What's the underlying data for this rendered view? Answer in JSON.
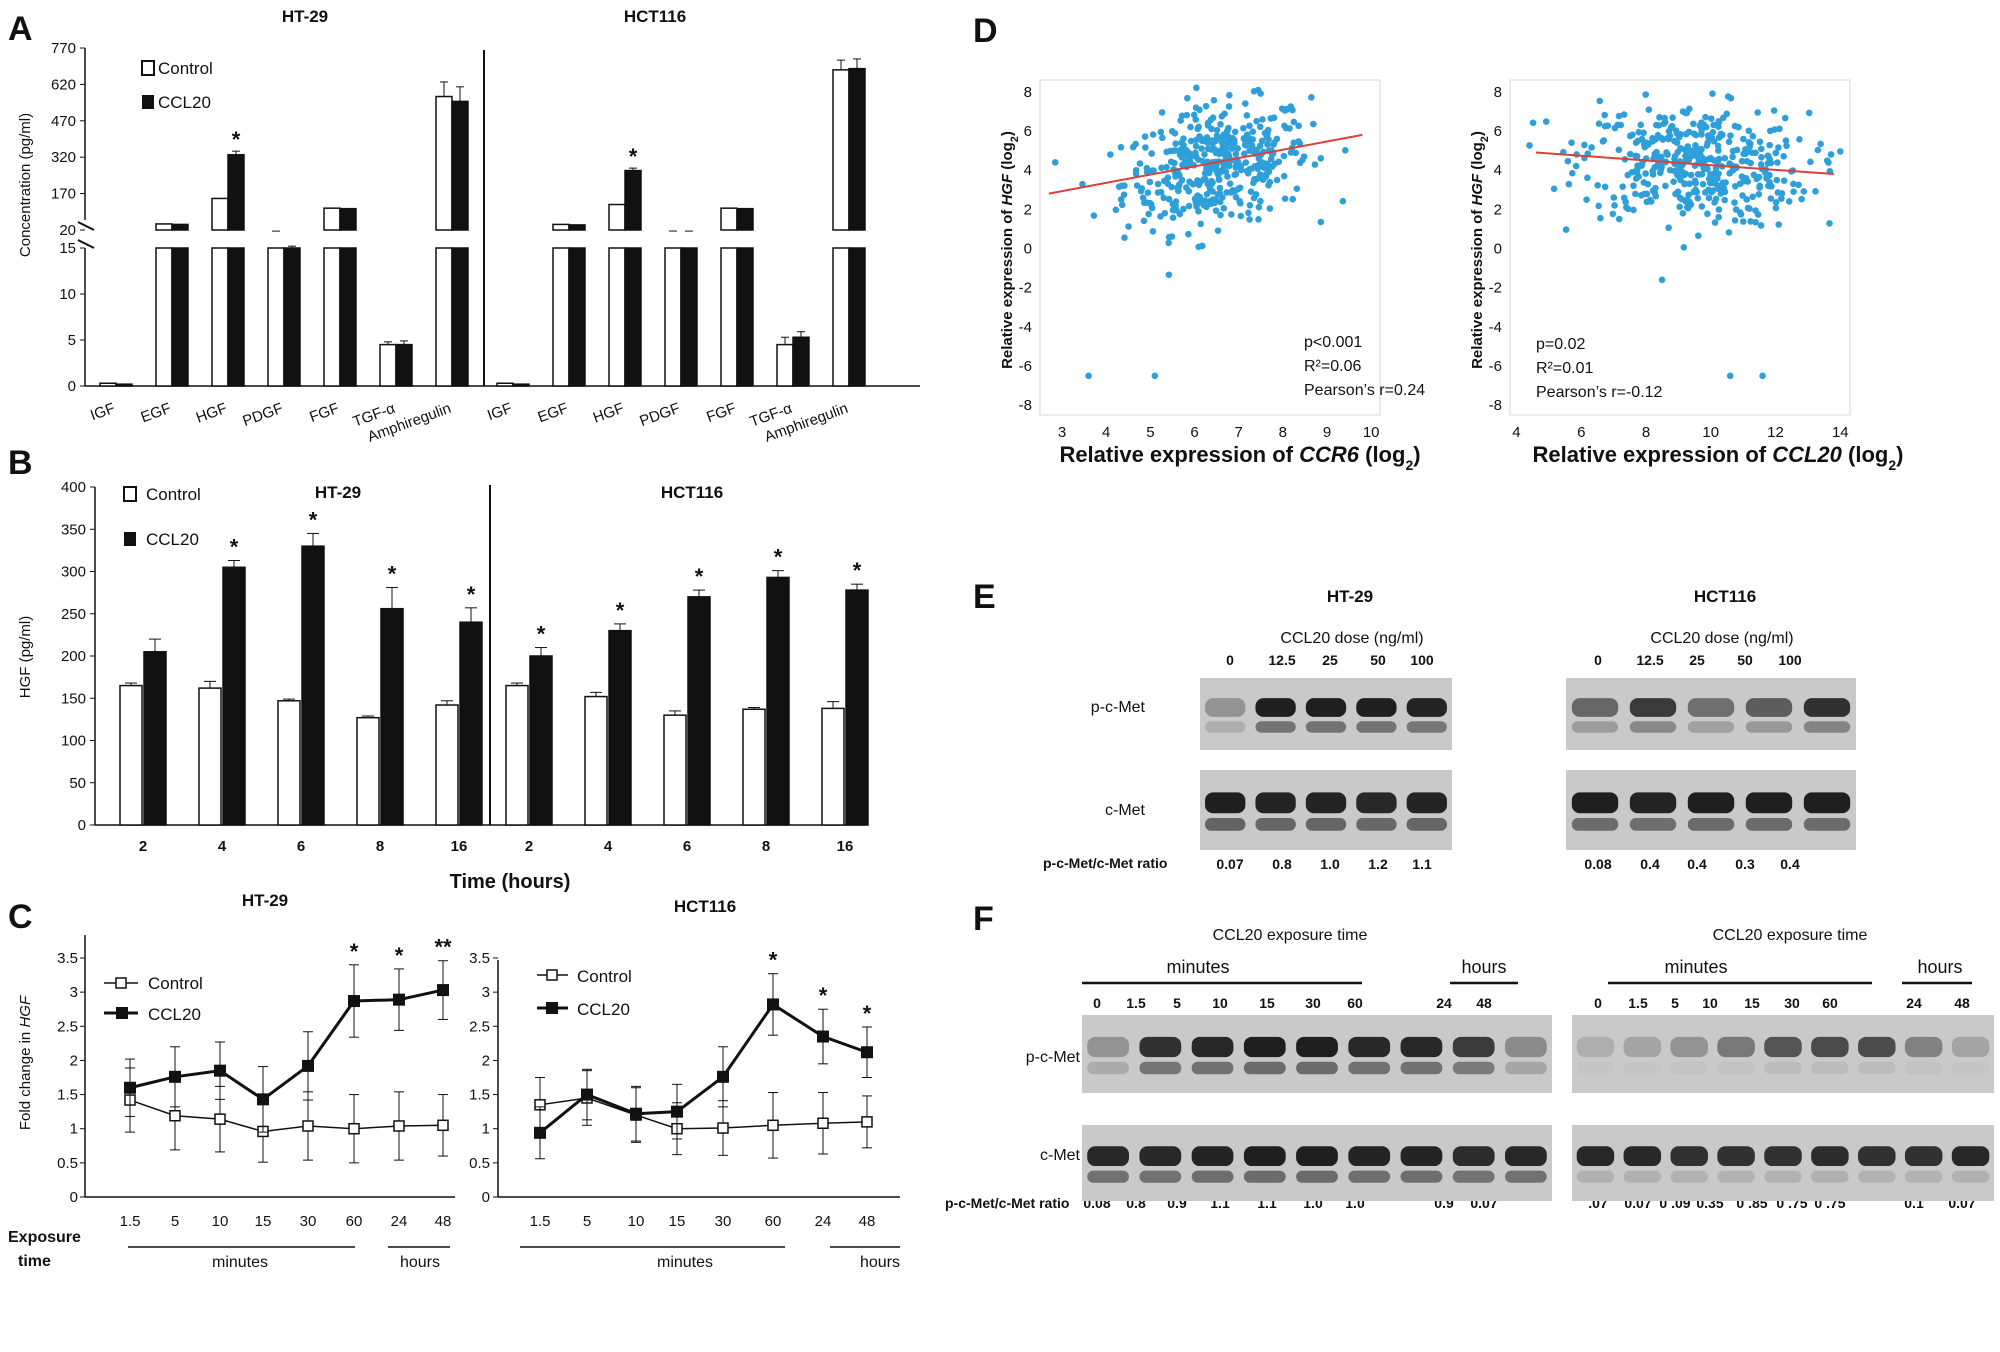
{
  "panels": {
    "A": {
      "label": "A",
      "titles": [
        "HT-29",
        "HCT116"
      ],
      "ylabel": "Concentration (pg/ml)",
      "legend": [
        "Control",
        "CCL20"
      ],
      "yticks_lower": [
        "0",
        "5",
        "10",
        "15"
      ],
      "yticks_upper": [
        "20",
        "170",
        "320",
        "470",
        "620",
        "770"
      ],
      "categories": [
        "IGF",
        "EGF",
        "HGF",
        "PDGF",
        "FGF",
        "TGF-α",
        "Amphiregulin"
      ],
      "star": "*"
    },
    "B": {
      "label": "B",
      "titles": [
        "HT-29",
        "HCT116"
      ],
      "ylabel": "HGF (pg/ml)",
      "xlabel": "Time (hours)",
      "legend": [
        "Control",
        "CCL20"
      ],
      "yticks": [
        "0",
        "50",
        "100",
        "150",
        "200",
        "250",
        "300",
        "350",
        "400"
      ],
      "xticks": [
        "2",
        "4",
        "6",
        "8",
        "16"
      ],
      "star": "*"
    },
    "C": {
      "label": "C",
      "titles": [
        "HT-29",
        "HCT116"
      ],
      "ylabel_pre": "Fold change in ",
      "ylabel_gene": "HGF",
      "legend": [
        "Control",
        "CCL20"
      ],
      "yticks": [
        "0",
        "0.5",
        "1",
        "1.5",
        "2",
        "2.5",
        "3",
        "3.5"
      ],
      "yticks_right": [
        "0",
        "0.5",
        "1",
        "1.5",
        "2",
        "2.5",
        "3",
        "3.5"
      ],
      "xticks": [
        "1.5",
        "5",
        "10",
        "15",
        "30",
        "60",
        "24",
        "48"
      ],
      "exposure": [
        "Exposure",
        "time"
      ],
      "minutes": "minutes",
      "hours": "hours"
    },
    "D": {
      "label": "D",
      "ylabel_pre": "Relative expression of ",
      "ylabel_gene": "HGF",
      "ylabel_post": " (log",
      "sub2": "2",
      "xlabel_left_pre": "Relative expression of ",
      "xlabel_left_gene": "CCR6",
      "xlabel_right_gene": "CCL20",
      "xlabel_post": " (log",
      "yticks": [
        "-8",
        "-6",
        "-4",
        "-2",
        "0",
        "2",
        "4",
        "6",
        "8"
      ],
      "xticks_left": [
        "3",
        "4",
        "5",
        "6",
        "7",
        "8",
        "9",
        "10"
      ],
      "xticks_right": [
        "4",
        "6",
        "8",
        "10",
        "12",
        "14"
      ],
      "stats_left": [
        "p<0.001",
        "R²=0.06",
        "Pearson’s r=0.24"
      ],
      "stats_right": [
        "p=0.02",
        "R²=0.01",
        "Pearson’s r=-0.12"
      ]
    },
    "E": {
      "label": "E",
      "titles": [
        "HT-29",
        "HCT116"
      ],
      "dose_label": "CCL20 dose (ng/ml)",
      "doses": [
        "0",
        "12.5",
        "25",
        "50",
        "100"
      ],
      "rows": [
        "p-c-Met",
        "c-Met"
      ],
      "ratio_label": "p-c-Met/c-Met ratio",
      "ratios_left": [
        "0.07",
        "0.8",
        "1.0",
        "1.2",
        "1.1"
      ],
      "ratios_right": [
        "0.08",
        "0.4",
        "0.4",
        "0.3",
        "0.4"
      ]
    },
    "F": {
      "label": "F",
      "title": "CCL20  exposure time",
      "minutes": "minutes",
      "hours": "hours",
      "times": [
        "0",
        "1.5",
        "5",
        "10",
        "15",
        "30",
        "60",
        "24",
        "48"
      ],
      "rows": [
        "p-c-Met",
        "c-Met"
      ],
      "ratio_label": "p-c-Met/c-Met ratio",
      "ratios_left": [
        "0.08",
        "0.8",
        "0.9",
        "1.1",
        "1.1",
        "1.0",
        "1.0",
        "0.9",
        "0.07"
      ],
      "ratios_right": [
        ".07",
        "0.07",
        "0 .09",
        "0.35",
        "0 .85",
        "0 .75",
        "0 .75",
        "0.1",
        "0.07"
      ]
    }
  },
  "chart_data": [
    {
      "type": "bar",
      "panel": "A",
      "title": "HT-29",
      "categories": [
        "IGF",
        "EGF",
        "HGF",
        "PDGF",
        "FGF",
        "TGF-α",
        "Amphiregulin"
      ],
      "series": [
        {
          "name": "Control",
          "values": [
            0.3,
            45,
            150,
            15.3,
            110,
            4.5,
            570
          ],
          "errors": [
            0,
            0,
            0,
            0.2,
            0,
            0.3,
            60
          ]
        },
        {
          "name": "CCL20",
          "values": [
            0.2,
            43,
            330,
            15.0,
            108,
            4.5,
            550
          ],
          "errors": [
            0,
            0,
            15,
            0.2,
            0,
            0.4,
            60
          ]
        }
      ],
      "significant": [
        false,
        false,
        true,
        false,
        false,
        false,
        false
      ],
      "ylabel": "Concentration (pg/ml)",
      "ylim": [
        0,
        770
      ],
      "axis_break": [
        15,
        20
      ]
    },
    {
      "type": "bar",
      "panel": "A",
      "title": "HCT116",
      "categories": [
        "IGF",
        "EGF",
        "HGF",
        "PDGF",
        "FGF",
        "TGF-α",
        "Amphiregulin"
      ],
      "series": [
        {
          "name": "Control",
          "values": [
            0.3,
            43,
            125,
            15.5,
            110,
            4.5,
            680
          ],
          "errors": [
            0,
            0,
            0,
            0.2,
            0,
            0.8,
            40
          ]
        },
        {
          "name": "CCL20",
          "values": [
            0.2,
            41,
            265,
            15.3,
            108,
            5.3,
            685
          ],
          "errors": [
            0,
            0,
            10,
            0.2,
            0,
            0.6,
            40
          ]
        }
      ],
      "significant": [
        false,
        false,
        true,
        false,
        false,
        false,
        false
      ],
      "ylim": [
        0,
        770
      ],
      "axis_break": [
        15,
        20
      ]
    },
    {
      "type": "bar",
      "panel": "B",
      "groups": [
        {
          "title": "HT-29",
          "categories": [
            "2",
            "4",
            "6",
            "8",
            "16"
          ],
          "series": [
            {
              "name": "Control",
              "values": [
                165,
                162,
                147,
                127,
                142
              ],
              "errors": [
                3,
                8,
                2,
                2,
                5
              ]
            },
            {
              "name": "CCL20",
              "values": [
                205,
                305,
                330,
                256,
                240
              ],
              "errors": [
                15,
                8,
                15,
                25,
                17
              ]
            }
          ],
          "significant": [
            false,
            true,
            true,
            true,
            true
          ]
        },
        {
          "title": "HCT116",
          "categories": [
            "2",
            "4",
            "6",
            "8",
            "16"
          ],
          "series": [
            {
              "name": "Control",
              "values": [
                165,
                152,
                130,
                137,
                138
              ],
              "errors": [
                3,
                5,
                5,
                2,
                8
              ]
            },
            {
              "name": "CCL20",
              "values": [
                200,
                230,
                270,
                293,
                278
              ],
              "errors": [
                10,
                8,
                8,
                8,
                7
              ]
            }
          ],
          "significant": [
            true,
            true,
            true,
            true,
            true
          ]
        }
      ],
      "xlabel": "Time (hours)",
      "ylabel": "HGF (pg/ml)",
      "ylim": [
        0,
        400
      ]
    },
    {
      "type": "line",
      "panel": "C",
      "title": "HT-29",
      "x": [
        "1.5",
        "5",
        "10",
        "15",
        "30",
        "60",
        "24",
        "48"
      ],
      "series": [
        {
          "name": "Control",
          "values": [
            1.42,
            1.19,
            1.14,
            0.96,
            1.04,
            1.0,
            1.04,
            1.05
          ],
          "errors": [
            0.47,
            0.5,
            0.48,
            0.45,
            0.5,
            0.5,
            0.5,
            0.45
          ]
        },
        {
          "name": "CCL20",
          "values": [
            1.6,
            1.76,
            1.85,
            1.43,
            1.92,
            2.87,
            2.89,
            3.03
          ],
          "errors": [
            0.42,
            0.44,
            0.42,
            0.48,
            0.5,
            0.53,
            0.45,
            0.43
          ]
        }
      ],
      "significance": [
        "",
        "",
        "",
        "",
        "",
        "*",
        "*",
        "**"
      ],
      "ylim": [
        0,
        3.5
      ]
    },
    {
      "type": "line",
      "panel": "C",
      "title": "HCT116",
      "x": [
        "1.5",
        "5",
        "10",
        "15",
        "30",
        "60",
        "24",
        "48"
      ],
      "series": [
        {
          "name": "Control",
          "values": [
            1.35,
            1.45,
            1.2,
            1.0,
            1.01,
            1.05,
            1.08,
            1.1
          ],
          "errors": [
            0.4,
            0.4,
            0.4,
            0.38,
            0.4,
            0.48,
            0.45,
            0.38
          ]
        },
        {
          "name": "CCL20",
          "values": [
            0.94,
            1.5,
            1.22,
            1.25,
            1.76,
            2.82,
            2.35,
            2.12
          ],
          "errors": [
            0.38,
            0.37,
            0.4,
            0.4,
            0.44,
            0.45,
            0.4,
            0.37
          ]
        }
      ],
      "significance": [
        "",
        "",
        "",
        "",
        "",
        "*",
        "*",
        "*"
      ],
      "ylim": [
        0,
        3.5
      ]
    },
    {
      "type": "scatter",
      "panel": "D",
      "x_gene": "CCR6",
      "xlim": [
        2.5,
        10.2
      ],
      "ylim": [
        -8.5,
        8.6
      ],
      "trend": {
        "x": [
          2.7,
          9.8
        ],
        "y": [
          2.8,
          5.8
        ]
      },
      "outliers": [
        [
          3.6,
          -6.5
        ],
        [
          5.1,
          -6.5
        ]
      ],
      "center": [
        6.5,
        4.2
      ],
      "n": 420
    },
    {
      "type": "scatter",
      "panel": "D",
      "x_gene": "CCL20",
      "xlim": [
        3.8,
        14.3
      ],
      "ylim": [
        -8.5,
        8.6
      ],
      "trend": {
        "x": [
          4.6,
          13.8
        ],
        "y": [
          4.9,
          3.8
        ]
      },
      "outliers": [
        [
          10.6,
          -6.5
        ],
        [
          11.6,
          -6.5
        ]
      ],
      "center": [
        9.5,
        4.3
      ],
      "n": 420
    }
  ],
  "colors": {
    "dot": "#2e9fd9",
    "trend": "#d9413b",
    "ink": "#111111",
    "blot_bg": "#c9c9c9",
    "band": "#161616"
  }
}
